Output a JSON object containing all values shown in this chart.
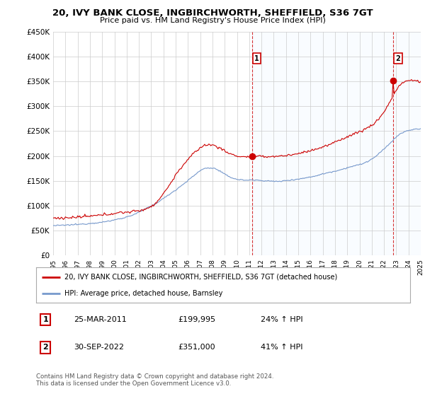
{
  "title": "20, IVY BANK CLOSE, INGBIRCHWORTH, SHEFFIELD, S36 7GT",
  "subtitle": "Price paid vs. HM Land Registry's House Price Index (HPI)",
  "legend_label_red": "20, IVY BANK CLOSE, INGBIRCHWORTH, SHEFFIELD, S36 7GT (detached house)",
  "legend_label_blue": "HPI: Average price, detached house, Barnsley",
  "annotation1_box": "1",
  "annotation1_date": "25-MAR-2011",
  "annotation1_price": "£199,995",
  "annotation1_hpi": "24% ↑ HPI",
  "annotation2_box": "2",
  "annotation2_date": "30-SEP-2022",
  "annotation2_price": "£351,000",
  "annotation2_hpi": "41% ↑ HPI",
  "footer": "Contains HM Land Registry data © Crown copyright and database right 2024.\nThis data is licensed under the Open Government Licence v3.0.",
  "ylim": [
    0,
    450000
  ],
  "yticks": [
    0,
    50000,
    100000,
    150000,
    200000,
    250000,
    300000,
    350000,
    400000,
    450000
  ],
  "ytick_labels": [
    "£0",
    "£50K",
    "£100K",
    "£150K",
    "£200K",
    "£250K",
    "£300K",
    "£350K",
    "£400K",
    "£450K"
  ],
  "color_red": "#cc0000",
  "color_blue": "#7799cc",
  "color_grid": "#cccccc",
  "color_shade": "#ddeeff",
  "background_plot": "#ffffff",
  "background_fig": "#ffffff",
  "sale1_x": 2011.22,
  "sale1_y": 199995,
  "sale2_x": 2022.75,
  "sale2_y": 351000,
  "xmin": 1995,
  "xmax": 2025
}
